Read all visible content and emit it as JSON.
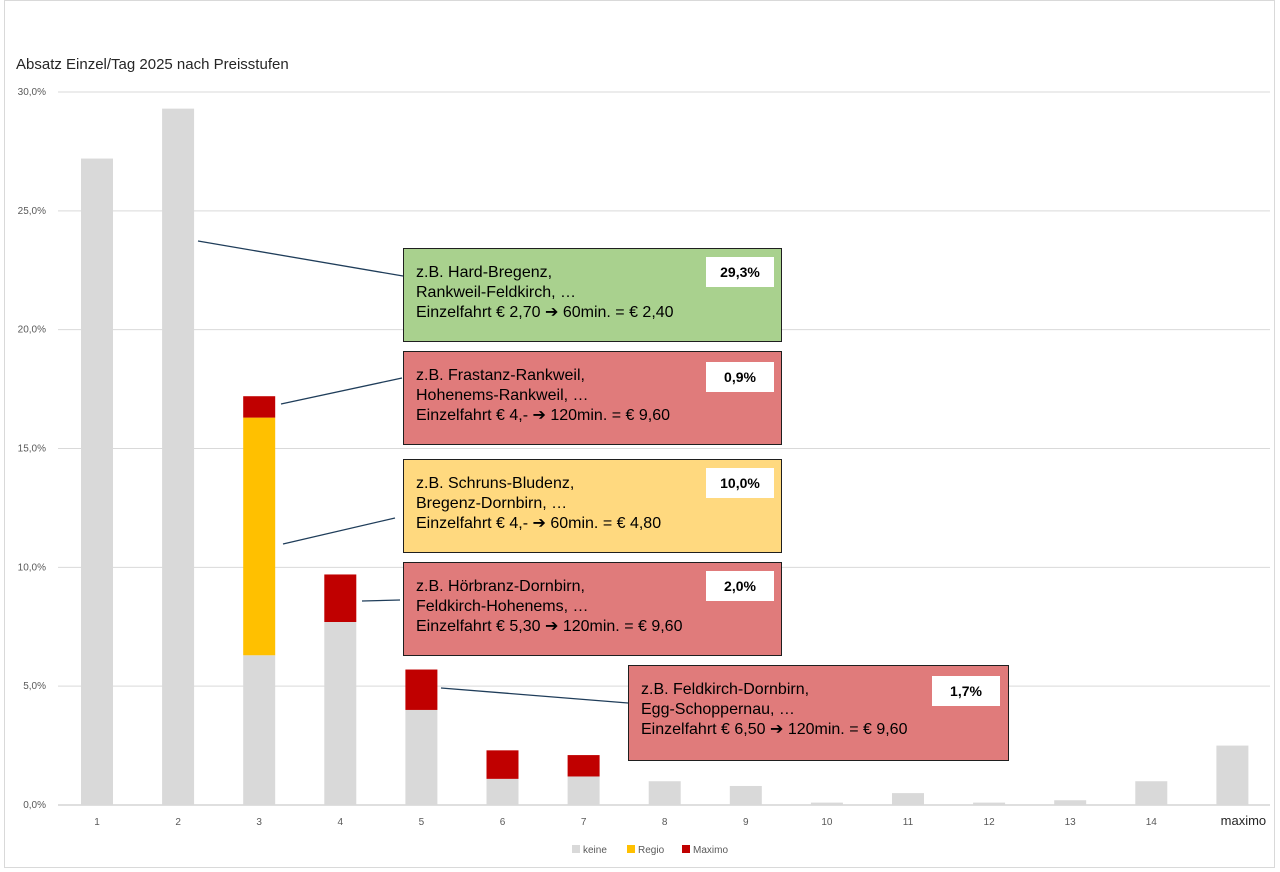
{
  "chart_data": {
    "type": "bar",
    "stacked": true,
    "title": "Absatz Einzel/Tag 2025 nach Preisstufen",
    "categories": [
      "1",
      "2",
      "3",
      "4",
      "5",
      "6",
      "7",
      "8",
      "9",
      "10",
      "11",
      "12",
      "13",
      "14",
      "maximo"
    ],
    "ylim": [
      0,
      30
    ],
    "yticks": [
      "0,0%",
      "5,0%",
      "10,0%",
      "15,0%",
      "20,0%",
      "25,0%",
      "30,0%"
    ],
    "grid": true,
    "legend_position": "bottom",
    "series": [
      {
        "name": "keine",
        "color": "#d9d9d9",
        "values": [
          27.2,
          29.3,
          6.3,
          7.7,
          4.0,
          1.1,
          1.2,
          1.0,
          0.8,
          0.1,
          0.5,
          0.1,
          0.2,
          1.0,
          2.5
        ]
      },
      {
        "name": "Regio",
        "color": "#ffc000",
        "values": [
          0,
          0,
          10.0,
          0,
          0,
          0,
          0,
          0,
          0,
          0,
          0,
          0,
          0,
          0,
          0
        ]
      },
      {
        "name": "Maximo",
        "color": "#c00000",
        "values": [
          0,
          0,
          0.9,
          2.0,
          1.7,
          1.2,
          0.9,
          0,
          0,
          0,
          0,
          0,
          0,
          0,
          0
        ]
      }
    ]
  },
  "callouts": [
    {
      "lines": [
        "z.B. Hard-Bregenz,",
        "Rankweil-Feldkirch, …",
        "Einzelfahrt € 2,70 ➔ 60min. = € 2,40"
      ],
      "badge": "29,3%",
      "color": "#a9d18e"
    },
    {
      "lines": [
        "z.B. Frastanz-Rankweil,",
        "Hohenems-Rankweil, …",
        "Einzelfahrt € 4,- ➔ 120min. = € 9,60"
      ],
      "badge": "0,9%",
      "color": "#e07b7b"
    },
    {
      "lines": [
        "z.B. Schruns-Bludenz,",
        "Bregenz-Dornbirn, …",
        "Einzelfahrt € 4,- ➔ 60min. = € 4,80"
      ],
      "badge": "10,0%",
      "color": "#ffd97f"
    },
    {
      "lines": [
        "z.B. Hörbranz-Dornbirn,",
        "Feldkirch-Hohenems, …",
        "Einzelfahrt € 5,30 ➔ 120min. = € 9,60"
      ],
      "badge": "2,0%",
      "color": "#e07b7b"
    },
    {
      "lines": [
        "z.B. Feldkirch-Dornbirn,",
        "Egg-Schoppernau, …",
        "Einzelfahrt € 6,50 ➔ 120min. = € 9,60"
      ],
      "badge": "1,7%",
      "color": "#e07b7b"
    }
  ]
}
